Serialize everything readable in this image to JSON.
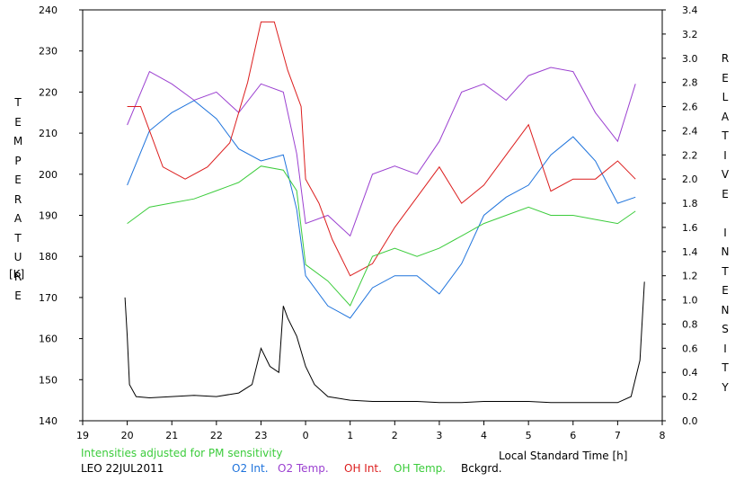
{
  "chart_data": {
    "type": "line",
    "ylabel_left_letters": [
      "T",
      "E",
      "M",
      "P",
      "E",
      "R",
      "A",
      "T",
      "U",
      "R",
      "E"
    ],
    "ylabel_left_unit": "[K]",
    "ylabel_right_letters": [
      "R",
      "E",
      "L",
      "A",
      "T",
      "I",
      "V",
      "E",
      "",
      "I",
      "N",
      "T",
      "E",
      "N",
      "S",
      "I",
      "T",
      "Y"
    ],
    "xlabel": "Local Standard Time [h]",
    "note": "Intensities adjusted for PM sensitivity",
    "station_date": "LEO 22JUL2011",
    "x_ticks": [
      "19",
      "20",
      "21",
      "22",
      "23",
      "0",
      "1",
      "2",
      "3",
      "4",
      "5",
      "6",
      "7",
      "8"
    ],
    "x_range_hours": [
      19,
      32
    ],
    "y_left_ticks": [
      140,
      150,
      160,
      170,
      180,
      190,
      200,
      210,
      220,
      230,
      240
    ],
    "y_left_range": [
      140,
      240
    ],
    "y_right_ticks": [
      "0.0",
      "0.2",
      "0.4",
      "0.6",
      "0.8",
      "1.0",
      "1.2",
      "1.4",
      "1.6",
      "1.8",
      "2.0",
      "2.2",
      "2.4",
      "2.6",
      "2.8",
      "3.0",
      "3.2",
      "3.4"
    ],
    "y_right_range": [
      0,
      3.4
    ],
    "series": [
      {
        "name": "O2 Int.",
        "color": "#1e73dc",
        "axis": "right",
        "x": [
          20.0,
          20.5,
          21.0,
          21.5,
          22.0,
          22.5,
          23.0,
          23.5,
          23.8,
          24.0,
          24.5,
          25.0,
          25.5,
          26.0,
          26.5,
          27.0,
          27.5,
          28.0,
          28.5,
          29.0,
          29.5,
          30.0,
          30.5,
          31.0,
          31.4
        ],
        "y": [
          1.95,
          2.4,
          2.55,
          2.65,
          2.5,
          2.25,
          2.15,
          2.2,
          1.75,
          1.2,
          0.95,
          0.85,
          1.1,
          1.2,
          1.2,
          1.05,
          1.3,
          1.7,
          1.85,
          1.95,
          2.2,
          2.35,
          2.15,
          1.8,
          1.85
        ]
      },
      {
        "name": "O2 Temp.",
        "color": "#9b40d0",
        "axis": "left",
        "x": [
          20.0,
          20.5,
          21.0,
          21.5,
          22.0,
          22.5,
          23.0,
          23.5,
          23.8,
          24.0,
          24.5,
          25.0,
          25.5,
          26.0,
          26.5,
          27.0,
          27.5,
          28.0,
          28.5,
          29.0,
          29.5,
          30.0,
          30.5,
          31.0,
          31.4
        ],
        "y": [
          212,
          225,
          222,
          218,
          220,
          215,
          222,
          220,
          205,
          188,
          190,
          185,
          200,
          202,
          200,
          208,
          220,
          222,
          218,
          224,
          226,
          225,
          215,
          208,
          222
        ]
      },
      {
        "name": "OH Int.",
        "color": "#dc1e1e",
        "axis": "right",
        "x": [
          20.0,
          20.3,
          20.8,
          21.3,
          21.8,
          22.3,
          22.7,
          23.0,
          23.3,
          23.6,
          23.9,
          24.0,
          24.3,
          24.6,
          25.0,
          25.5,
          26.0,
          26.5,
          27.0,
          27.5,
          28.0,
          28.5,
          29.0,
          29.5,
          30.0,
          30.5,
          31.0,
          31.4
        ],
        "y": [
          2.6,
          2.6,
          2.1,
          2.0,
          2.1,
          2.3,
          2.8,
          3.3,
          3.3,
          2.9,
          2.6,
          2.0,
          1.8,
          1.5,
          1.2,
          1.3,
          1.6,
          1.85,
          2.1,
          1.8,
          1.95,
          2.2,
          2.45,
          1.9,
          2.0,
          2.0,
          2.15,
          2.0
        ]
      },
      {
        "name": "OH Temp.",
        "color": "#3ccc3c",
        "axis": "left",
        "x": [
          20.0,
          20.5,
          21.0,
          21.5,
          22.0,
          22.5,
          23.0,
          23.5,
          23.8,
          24.0,
          24.5,
          25.0,
          25.5,
          26.0,
          26.5,
          27.0,
          27.5,
          28.0,
          28.5,
          29.0,
          29.5,
          30.0,
          30.5,
          31.0,
          31.4
        ],
        "y": [
          188,
          192,
          193,
          194,
          196,
          198,
          202,
          201,
          196,
          178,
          174,
          168,
          180,
          182,
          180,
          182,
          185,
          188,
          190,
          192,
          190,
          190,
          189,
          188,
          191
        ]
      },
      {
        "name": "Bckgrd.",
        "color": "#000000",
        "axis": "right",
        "x": [
          19.95,
          20.0,
          20.05,
          20.2,
          20.5,
          21.0,
          21.5,
          22.0,
          22.5,
          22.8,
          23.0,
          23.2,
          23.4,
          23.5,
          23.6,
          23.8,
          24.0,
          24.2,
          24.5,
          25.0,
          25.5,
          26.0,
          26.5,
          27.0,
          27.5,
          28.0,
          28.5,
          29.0,
          29.5,
          30.0,
          30.5,
          31.0,
          31.3,
          31.5,
          31.6
        ],
        "y": [
          1.02,
          0.7,
          0.3,
          0.2,
          0.19,
          0.2,
          0.21,
          0.2,
          0.23,
          0.3,
          0.6,
          0.45,
          0.4,
          0.95,
          0.85,
          0.7,
          0.45,
          0.3,
          0.2,
          0.17,
          0.16,
          0.16,
          0.16,
          0.15,
          0.15,
          0.16,
          0.16,
          0.16,
          0.15,
          0.15,
          0.15,
          0.15,
          0.2,
          0.5,
          1.15
        ]
      }
    ]
  }
}
